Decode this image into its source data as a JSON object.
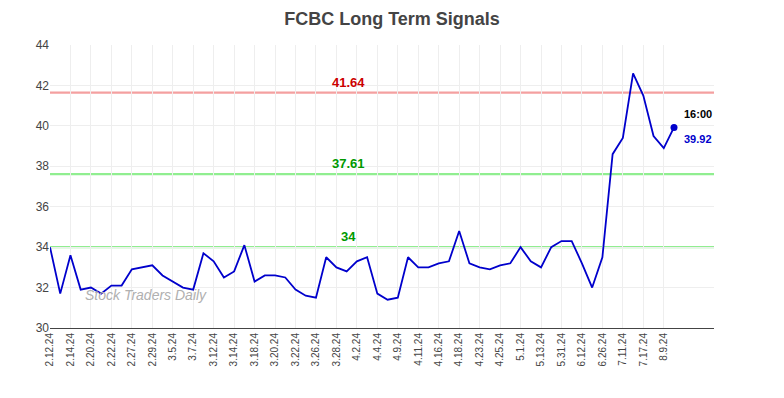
{
  "chart_data": {
    "type": "line",
    "title": "FCBC Long Term Signals",
    "color": "#0000cc",
    "marker": "circle",
    "grid": true,
    "ylim": [
      30,
      44
    ],
    "yticks": [
      30,
      32,
      34,
      36,
      38,
      40,
      42,
      44
    ],
    "categories": [
      "2.12.24",
      null,
      "2.14.24",
      null,
      "2.20.24",
      null,
      "2.22.24",
      null,
      "2.27.24",
      null,
      "2.29.24",
      null,
      "3.5.24",
      null,
      "3.7.24",
      null,
      "3.12.24",
      null,
      "3.14.24",
      null,
      "3.18.24",
      null,
      "3.20.24",
      null,
      "3.22.24",
      null,
      "3.26.24",
      null,
      "3.28.24",
      null,
      "4.2.24",
      null,
      "4.4.24",
      null,
      "4.9.24",
      null,
      "4.11.24",
      null,
      "4.16.24",
      null,
      "4.18.24",
      null,
      "4.23.24",
      null,
      "4.25.24",
      null,
      "5.1.24",
      null,
      "5.13.24",
      null,
      "5.31.24",
      null,
      "6.12.24",
      null,
      "6.26.24",
      null,
      "7.11.24",
      null,
      "7.17.24",
      null,
      "8.9.24",
      null
    ],
    "values": [
      34.0,
      31.7,
      33.6,
      31.9,
      32.0,
      31.7,
      32.1,
      32.1,
      32.9,
      33.0,
      33.1,
      32.6,
      32.3,
      32.0,
      31.9,
      33.7,
      33.3,
      32.5,
      32.8,
      34.1,
      32.3,
      32.6,
      32.6,
      32.5,
      31.9,
      31.6,
      31.5,
      33.5,
      33.0,
      32.8,
      33.3,
      33.5,
      31.7,
      31.4,
      31.5,
      33.5,
      33.0,
      33.0,
      33.2,
      33.3,
      34.8,
      33.2,
      33.0,
      32.9,
      33.1,
      33.2,
      34.0,
      33.3,
      33.0,
      34.0,
      34.3,
      34.3,
      33.2,
      32.0,
      33.5,
      38.6,
      39.4,
      42.6,
      41.5,
      39.5,
      38.9,
      39.92
    ],
    "reference_lines": [
      {
        "value": 41.64,
        "label": "41.64",
        "color": "#f4a0a0",
        "label_color": "#cc0000"
      },
      {
        "value": 37.61,
        "label": "37.61",
        "color": "#90ee90",
        "label_color": "#009900"
      },
      {
        "value": 34.0,
        "label": "34",
        "color": "#90ee90",
        "label_color": "#009900"
      }
    ],
    "annotations": [
      {
        "text": "16:00",
        "color": "#000000"
      },
      {
        "text": "39.92",
        "color": "#0000cc"
      }
    ],
    "watermark": {
      "text": "Stock Traders Daily",
      "color": "#b0b0b0"
    }
  }
}
